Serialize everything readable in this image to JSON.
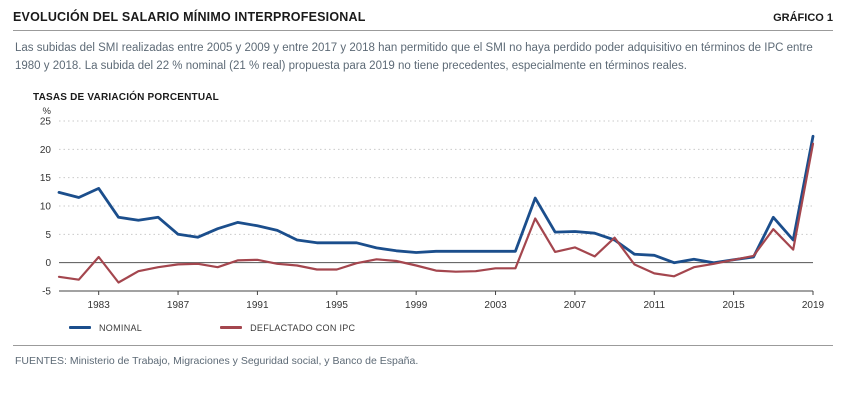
{
  "header": {
    "title": "EVOLUCIÓN DEL SALARIO MÍNIMO INTERPROFESIONAL",
    "badge": "GRÁFICO 1"
  },
  "description": "Las subidas del SMI realizadas entre 2005 y 2009 y entre 2017 y 2018 han permitido que el SMI no haya perdido poder adquisitivo en términos de IPC entre 1980 y 2018. La subida del 22 % nominal (21 % real) propuesta para 2019 no tiene precedentes, especialmente en términos reales.",
  "chart_heading": "TASAS DE VARIACIÓN PORCENTUAL",
  "footer": "FUENTES: Ministerio de Trabajo, Migraciones y Seguridad social, y Banco de España.",
  "chart_data": {
    "type": "line",
    "title": "TASAS DE VARIACIÓN PORCENTUAL",
    "xlabel": "",
    "ylabel": "%",
    "ylim": [
      -5,
      25
    ],
    "yticks": [
      25,
      20,
      15,
      10,
      5,
      0,
      -5
    ],
    "xticks": [
      1983,
      1987,
      1991,
      1995,
      1999,
      2003,
      2007,
      2011,
      2015,
      2019
    ],
    "grid": "horizontal-dotted",
    "legend_position": "bottom-left",
    "x": [
      1981,
      1982,
      1983,
      1984,
      1985,
      1986,
      1987,
      1988,
      1989,
      1990,
      1991,
      1992,
      1993,
      1994,
      1995,
      1996,
      1997,
      1998,
      1999,
      2000,
      2001,
      2002,
      2003,
      2004,
      2005,
      2006,
      2007,
      2008,
      2009,
      2010,
      2011,
      2012,
      2013,
      2014,
      2015,
      2016,
      2017,
      2018,
      2019
    ],
    "series": [
      {
        "name": "NOMINAL",
        "color": "#1b4e8c",
        "values": [
          12.4,
          11.5,
          13.1,
          8.0,
          7.5,
          8.0,
          5.0,
          4.5,
          6.0,
          7.1,
          6.5,
          5.7,
          4.0,
          3.5,
          3.5,
          3.5,
          2.6,
          2.1,
          1.8,
          2.0,
          2.0,
          2.0,
          2.0,
          2.0,
          11.4,
          5.4,
          5.5,
          5.2,
          4.0,
          1.5,
          1.3,
          0.0,
          0.6,
          0.0,
          0.5,
          1.0,
          8.0,
          4.0,
          22.3
        ]
      },
      {
        "name": "DEFLACTADO CON IPC",
        "color": "#a4464e",
        "values": [
          -2.5,
          -3.0,
          1.0,
          -3.5,
          -1.5,
          -0.8,
          -0.3,
          -0.2,
          -0.8,
          0.4,
          0.5,
          -0.2,
          -0.5,
          -1.2,
          -1.2,
          -0.1,
          0.6,
          0.3,
          -0.5,
          -1.4,
          -1.6,
          -1.5,
          -1.0,
          -1.0,
          7.8,
          1.9,
          2.7,
          1.1,
          4.4,
          -0.3,
          -1.9,
          -2.4,
          -0.8,
          -0.2,
          0.5,
          1.2,
          5.9,
          2.3,
          21.0
        ]
      }
    ]
  }
}
